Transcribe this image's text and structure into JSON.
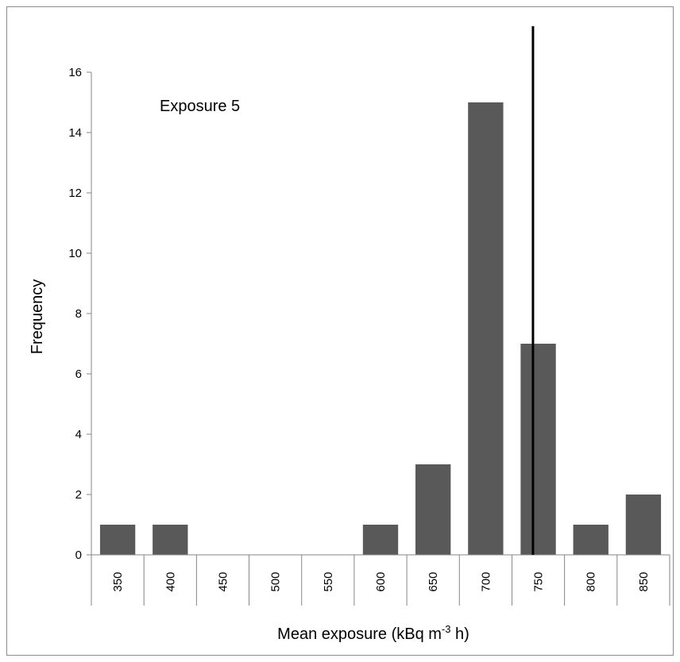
{
  "chart_data": {
    "type": "bar",
    "title": "",
    "xlabel": "Mean exposure (kBq m-3 h)",
    "xlabel_parts": {
      "before": "Mean exposure (kBq m",
      "sup": "-3",
      "after": " h)"
    },
    "ylabel": "Frequency",
    "categories": [
      "350",
      "400",
      "450",
      "500",
      "550",
      "600",
      "650",
      "700",
      "750",
      "800",
      "850"
    ],
    "values": [
      1,
      1,
      0,
      0,
      0,
      1,
      3,
      15,
      7,
      1,
      2
    ],
    "ylim": [
      0,
      16
    ],
    "yticks": [
      "0",
      "2",
      "4",
      "6",
      "8",
      "10",
      "12",
      "14",
      "16"
    ],
    "annotation": "Exposure 5",
    "reference_line": {
      "x": 745
    },
    "bar_color": "#595959",
    "line_color": "#000000",
    "grid": false,
    "legend": "none"
  }
}
